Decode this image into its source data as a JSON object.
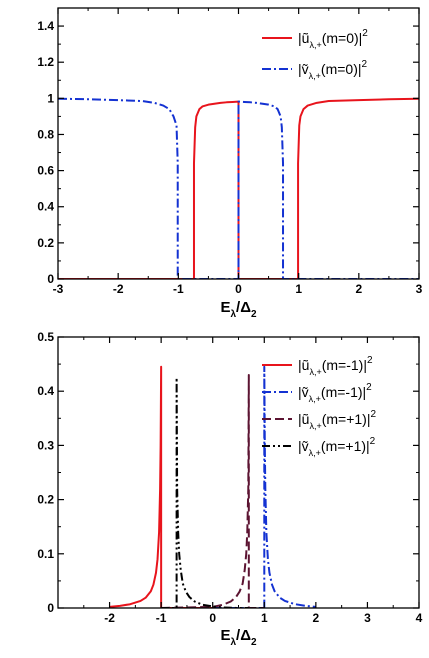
{
  "chart_data": [
    {
      "type": "line",
      "title": "",
      "xlabel": "E_λ/Δ_2",
      "xlabel_main": "E",
      "xlabel_sub": "λ",
      "xlabel_rest": "/Δ",
      "xlabel_sub2": "2",
      "ylabel": "",
      "xlim": [
        -3,
        3
      ],
      "ylim": [
        0,
        1.5
      ],
      "xticks": [
        -3,
        -2,
        -1,
        0,
        1,
        2,
        3
      ],
      "xtick_labels": [
        "-3",
        "-2",
        "-1",
        "0",
        "1",
        "2",
        "3"
      ],
      "yticks": [
        0,
        0.2,
        0.4,
        0.6,
        0.8,
        1,
        1.2,
        1.4
      ],
      "ytick_labels": [
        "0",
        "0.2",
        "0.4",
        "0.6",
        "0.8",
        "1",
        "1.2",
        "1.4"
      ],
      "grid": false,
      "legend_position": "top-right",
      "series": [
        {
          "legend_label": {
            "main": "|ũ",
            "sub": "λ,+",
            "rest": "(m=0)|",
            "sup": "2"
          },
          "color": "#e8141c",
          "dash": "solid",
          "x": [
            -3,
            -0.74,
            -0.74,
            -0.72,
            -0.7,
            -0.65,
            -0.6,
            -0.5,
            -0.4,
            -0.3,
            -0.2,
            -0.1,
            -0.01,
            0,
            0,
            0.99,
            0.99,
            1.01,
            1.03,
            1.08,
            1.15,
            1.3,
            1.5,
            2,
            2.5,
            3
          ],
          "y": [
            0,
            0,
            0.64,
            0.84,
            0.9,
            0.94,
            0.955,
            0.965,
            0.97,
            0.975,
            0.978,
            0.98,
            0.982,
            0.982,
            0,
            0,
            0.64,
            0.85,
            0.9,
            0.94,
            0.96,
            0.975,
            0.985,
            0.99,
            0.995,
            0.998
          ]
        },
        {
          "legend_label": {
            "main": "|ṽ",
            "sub": "λ,+",
            "rest": "(m=0)|",
            "sup": "2"
          },
          "color": "#1432d2",
          "dash": "dashdot",
          "x": [
            -3,
            -2.5,
            -2,
            -1.6,
            -1.4,
            -1.25,
            -1.15,
            -1.08,
            -1.03,
            -1.01,
            -1.01,
            0,
            0,
            0.01,
            0.1,
            0.2,
            0.3,
            0.4,
            0.5,
            0.6,
            0.65,
            0.7,
            0.72,
            0.74,
            0.74,
            3
          ],
          "y": [
            0.998,
            0.995,
            0.99,
            0.985,
            0.975,
            0.96,
            0.94,
            0.9,
            0.85,
            0.64,
            0,
            0,
            0.982,
            0.982,
            0.98,
            0.978,
            0.975,
            0.97,
            0.965,
            0.955,
            0.94,
            0.9,
            0.84,
            0.64,
            0,
            0
          ]
        }
      ]
    },
    {
      "type": "line",
      "title": "",
      "xlabel": "E_λ/Δ_2",
      "xlabel_main": "E",
      "xlabel_sub": "λ",
      "xlabel_rest": "/Δ",
      "xlabel_sub2": "2",
      "ylabel": "",
      "xlim": [
        -3,
        4
      ],
      "ylim": [
        0,
        0.5
      ],
      "xticks": [
        -2,
        -1,
        0,
        1,
        2,
        3,
        4
      ],
      "xtick_labels": [
        "-2",
        "-1",
        "0",
        "1",
        "2",
        "3",
        "4"
      ],
      "yticks": [
        0,
        0.1,
        0.2,
        0.3,
        0.4,
        0.5
      ],
      "ytick_labels": [
        "0",
        "0.1",
        "0.2",
        "0.3",
        "0.4",
        "0.5"
      ],
      "grid": false,
      "legend_position": "top-right",
      "series": [
        {
          "legend_label": {
            "main": "|ũ",
            "sub": "λ,+",
            "rest": "(m=-1)|",
            "sup": "2"
          },
          "color": "#e8141c",
          "dash": "solid",
          "x": [
            -2,
            -1.8,
            -1.6,
            -1.4,
            -1.3,
            -1.2,
            -1.15,
            -1.1,
            -1.07,
            -1.04,
            -1.02,
            -1.01,
            -1.0,
            -1.0,
            0
          ],
          "y": [
            0.002,
            0.004,
            0.007,
            0.013,
            0.019,
            0.031,
            0.043,
            0.065,
            0.09,
            0.14,
            0.22,
            0.3,
            0.445,
            0,
            0
          ]
        },
        {
          "legend_label": {
            "main": "|ṽ",
            "sub": "λ,+",
            "rest": "(m=-1)|",
            "sup": "2"
          },
          "color": "#1432d2",
          "dash": "dashdot",
          "x": [
            0,
            1.0,
            1.0,
            1.01,
            1.02,
            1.04,
            1.07,
            1.1,
            1.15,
            1.2,
            1.3,
            1.4,
            1.6,
            1.8,
            2
          ],
          "y": [
            0,
            0,
            0.445,
            0.3,
            0.22,
            0.14,
            0.09,
            0.065,
            0.043,
            0.031,
            0.019,
            0.013,
            0.007,
            0.004,
            0.002
          ]
        },
        {
          "legend_label": {
            "main": "|ũ",
            "sub": "λ,+",
            "rest": "(m=+1)|",
            "sup": "2"
          },
          "color": "#5c1432",
          "dash": "dashed",
          "x": [
            -1.0,
            0,
            0.2,
            0.35,
            0.45,
            0.52,
            0.58,
            0.62,
            0.65,
            0.67,
            0.69,
            0.7,
            0.7,
            1.0
          ],
          "y": [
            0,
            0.002,
            0.006,
            0.012,
            0.02,
            0.03,
            0.045,
            0.07,
            0.1,
            0.14,
            0.22,
            0.43,
            0,
            0
          ]
        },
        {
          "legend_label": {
            "main": "|ṽ",
            "sub": "λ,+",
            "rest": "(m=+1)|",
            "sup": "2"
          },
          "color": "#000000",
          "dash": "dashdotdot",
          "x": [
            -1.0,
            -0.7,
            -0.7,
            -0.69,
            -0.67,
            -0.65,
            -0.62,
            -0.58,
            -0.52,
            -0.45,
            -0.35,
            -0.2,
            0,
            0.2,
            0.5,
            0.7
          ],
          "y": [
            0,
            0,
            0.425,
            0.22,
            0.14,
            0.1,
            0.07,
            0.045,
            0.03,
            0.02,
            0.012,
            0.006,
            0.003,
            0.001,
            0,
            0
          ]
        }
      ]
    }
  ]
}
